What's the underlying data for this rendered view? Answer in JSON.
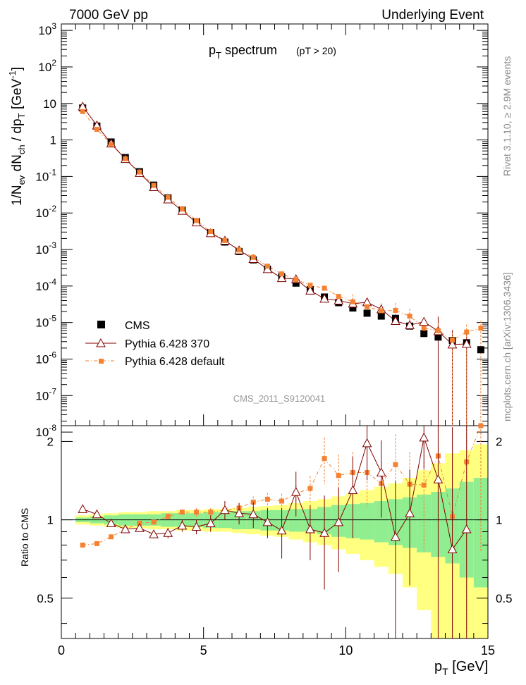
{
  "header": {
    "left": "7000 GeV pp",
    "right": "Underlying Event"
  },
  "title": {
    "main": "p",
    "main_sub": "T",
    "main_rest": " spectrum",
    "cut": "(pT > 20)"
  },
  "watermark": {
    "analysis": "CMS_2011_S9120041",
    "rivet": "Rivet 3.1.10, ≥ 2.9M events",
    "site": "mcplots.cern.ch [arXiv:1306.3436]"
  },
  "labels": {
    "ratio_ylabel": "Ratio to CMS",
    "xlabel_main": "p",
    "xlabel_sub": "T",
    "xlabel_unit": " [GeV]"
  },
  "ylabel": {
    "a": "1/N",
    "a_sub": "ev",
    "b": " dN",
    "b_sub": "ch",
    "c": " / dp",
    "c_sub": "T",
    "d": " [GeV",
    "d_sup": "-1",
    "e": "]"
  },
  "legend": [
    {
      "name": "CMS",
      "color": "#000000",
      "marker": "square"
    },
    {
      "name": "Pythia 6.428 370",
      "color": "#800000",
      "marker": "triangle"
    },
    {
      "name": "Pythia 6.428 default",
      "color": "#f58231",
      "marker": "small-square"
    }
  ],
  "colors": {
    "cms": "#000000",
    "p370": "#800000",
    "pdef": "#f58231",
    "band_green": "#90ee90",
    "band_yellow": "#ffff80"
  },
  "chart_data": {
    "type": "scatter",
    "x_range": [
      0,
      15
    ],
    "y_range_log": [
      1.5e-08,
      1500
    ],
    "ratio_range": [
      0.35,
      2.3
    ],
    "x_ticks": [
      "0",
      "5",
      "10",
      "15"
    ],
    "y_ticks": [
      {
        "m": "10",
        "e": "-8"
      },
      {
        "m": "10",
        "e": "-7"
      },
      {
        "m": "10",
        "e": "-6"
      },
      {
        "m": "10",
        "e": "-5"
      },
      {
        "m": "10",
        "e": "-4"
      },
      {
        "m": "10",
        "e": "-3"
      },
      {
        "m": "10",
        "e": "-2"
      },
      {
        "m": "10",
        "e": "-1"
      },
      {
        "m": "1",
        "e": ""
      },
      {
        "m": "10",
        "e": ""
      },
      {
        "m": "10",
        "e": "2"
      },
      {
        "m": "10",
        "e": "3"
      }
    ],
    "ratio_ticks": [
      "0.5",
      "1",
      "2"
    ],
    "x": [
      0.75,
      1.25,
      1.75,
      2.25,
      2.75,
      3.25,
      3.75,
      4.25,
      4.75,
      5.25,
      5.75,
      6.25,
      6.75,
      7.25,
      7.75,
      8.25,
      8.75,
      9.25,
      9.75,
      10.25,
      10.75,
      11.25,
      11.75,
      12.25,
      12.75,
      13.25,
      13.75,
      14.25,
      14.75
    ],
    "series": [
      {
        "name": "CMS",
        "values": [
          7.5,
          2.4,
          0.88,
          0.33,
          0.135,
          0.058,
          0.026,
          0.012,
          0.0058,
          0.0029,
          0.0016,
          0.00088,
          0.00052,
          0.00029,
          0.00018,
          0.00012,
          8e-05,
          5e-05,
          3.5e-05,
          2.5e-05,
          1.8e-05,
          1.5e-05,
          1.3e-05,
          8e-06,
          5e-06,
          4e-06,
          3.2e-06,
          2.8e-06,
          1.8e-06
        ]
      },
      {
        "name": "Pythia 6.428 370",
        "values": [
          8.2,
          2.5,
          0.8,
          0.3,
          0.125,
          0.051,
          0.0235,
          0.0115,
          0.0055,
          0.0028,
          0.00175,
          0.00095,
          0.00055,
          0.00029,
          0.000165,
          0.000155,
          7.5e-05,
          4.5e-05,
          4e-05,
          3.3e-05,
          3.6e-05,
          2.3e-05,
          1.1e-05,
          8.5e-06,
          1.05e-05,
          5.8e-06,
          2.5e-06,
          2.6e-06
        ]
      },
      {
        "name": "Pythia 6.428 default",
        "values": [
          6.0,
          1.95,
          0.76,
          0.305,
          0.132,
          0.057,
          0.0269,
          0.0128,
          0.0062,
          0.0031,
          0.00175,
          0.00097,
          0.00061,
          0.00035,
          0.000215,
          0.00015,
          0.000105,
          8.7e-05,
          5.2e-05,
          3.7e-05,
          2.7e-05,
          2.1e-05,
          2.15e-05,
          1.5e-05,
          7e-06,
          6e-06,
          3.3e-06,
          5.5e-06,
          7e-06
        ]
      }
    ],
    "ratio_series": [
      {
        "name": "Pythia 6.428 370",
        "values": [
          1.1,
          1.05,
          0.97,
          0.92,
          0.93,
          0.88,
          0.89,
          0.95,
          0.94,
          0.97,
          1.09,
          1.06,
          1.05,
          0.98,
          0.91,
          1.28,
          0.92,
          0.89,
          0.98,
          1.3,
          1.97,
          1.52,
          0.86,
          1.06,
          2.07,
          1.43,
          0.77,
          0.92
        ]
      },
      {
        "name": "Pythia 6.428 default",
        "values": [
          0.8,
          0.81,
          0.86,
          0.92,
          0.97,
          0.98,
          1.03,
          1.07,
          1.07,
          1.07,
          1.09,
          1.11,
          1.17,
          1.2,
          1.18,
          1.26,
          1.32,
          1.72,
          1.48,
          1.52,
          1.52,
          1.38,
          1.63,
          1.37,
          1.36,
          1.76,
          1.03,
          1.67,
          2.35
        ]
      }
    ],
    "ratio_errors_370": [
      0.02,
      0.02,
      0.02,
      0.02,
      0.03,
      0.03,
      0.04,
      0.05,
      0.06,
      0.07,
      0.09,
      0.1,
      0.12,
      0.13,
      0.2,
      0.25,
      0.22,
      0.35,
      0.35,
      0.45,
      0.55,
      0.5,
      0.55,
      0.5,
      0.5,
      1.2,
      1.5,
      1.5
    ],
    "ratio_errors_def": [
      0.01,
      0.01,
      0.01,
      0.02,
      0.02,
      0.02,
      0.03,
      0.03,
      0.04,
      0.04,
      0.05,
      0.05,
      0.06,
      0.07,
      0.08,
      0.1,
      0.15,
      0.35,
      0.3,
      0.3,
      0.4,
      0.3,
      0.5,
      0.45,
      0.6,
      0.8,
      1.2,
      1.3,
      1.6
    ],
    "band_inner": [
      0.02,
      0.03,
      0.04,
      0.05,
      0.05,
      0.05,
      0.06,
      0.06,
      0.06,
      0.07,
      0.07,
      0.08,
      0.08,
      0.09,
      0.09,
      0.1,
      0.1,
      0.12,
      0.14,
      0.15,
      0.16,
      0.18,
      0.2,
      0.22,
      0.25,
      0.28,
      0.32,
      0.4,
      0.45
    ],
    "band_outer": [
      0.04,
      0.05,
      0.06,
      0.07,
      0.07,
      0.08,
      0.08,
      0.09,
      0.09,
      0.1,
      0.1,
      0.11,
      0.12,
      0.13,
      0.14,
      0.16,
      0.18,
      0.2,
      0.23,
      0.26,
      0.3,
      0.34,
      0.38,
      0.45,
      0.55,
      0.65,
      0.8,
      0.85,
      0.95
    ]
  }
}
